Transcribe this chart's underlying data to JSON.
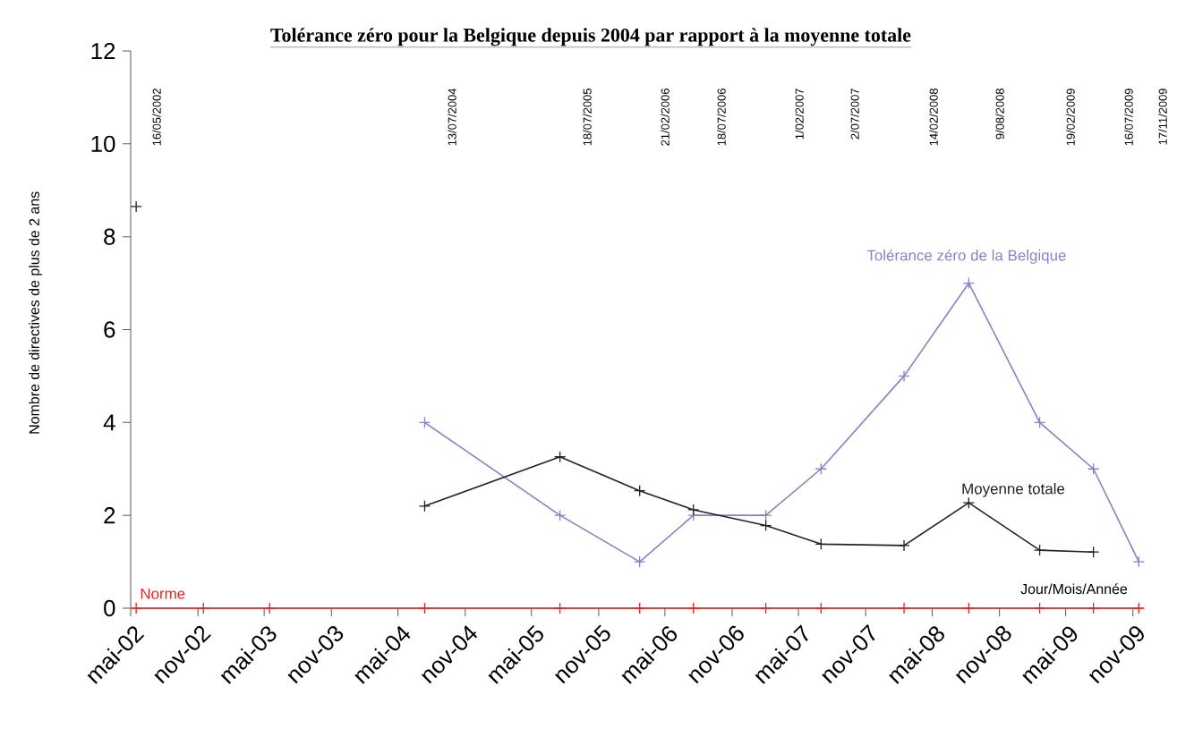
{
  "chart_data": {
    "type": "line",
    "title": "Tolérance zéro pour la Belgique depuis 2004 par rapport à la moyenne totale",
    "xlabel": "Jour/Mois/Année",
    "ylabel": "Nombre de directives de plus de 2 ans",
    "x": [
      "2002-05-16",
      "2002-11-16",
      "2003-05-16",
      "2004-07-13",
      "2005-07-18",
      "2006-02-21",
      "2006-07-18",
      "2007-02-01",
      "2007-07-02",
      "2008-02-14",
      "2008-08-09",
      "2009-02-19",
      "2009-07-16",
      "2009-11-17"
    ],
    "series": [
      {
        "name": "Tolérance zéro de la Belgique",
        "color": "#8484c4",
        "values": [
          null,
          null,
          null,
          4,
          2,
          1,
          2,
          2,
          3,
          5,
          7,
          4,
          3,
          1
        ]
      },
      {
        "name": "Moyenne totale",
        "color": "#222222",
        "values": [
          8.65,
          null,
          null,
          2.2,
          3.26,
          2.53,
          2.12,
          1.78,
          1.38,
          1.35,
          2.27,
          1.25,
          1.21,
          null
        ]
      },
      {
        "name": "Norme",
        "color": "#ee2222",
        "values": [
          0,
          0,
          0,
          0,
          0,
          0,
          0,
          0,
          0,
          0,
          0,
          0,
          0,
          0
        ]
      }
    ],
    "annotations": [
      "16/05/2002",
      "13/07/2004",
      "18/07/2005",
      "21/02/2006",
      "18/07/2006",
      "1/02/2007",
      "2/07/2007",
      "14/02/2008",
      "9/08/2008",
      "19/02/2009",
      "16/07/2009",
      "17/11/2009"
    ],
    "xlim": [
      "2002-05-01",
      "2009-12-01"
    ],
    "xticks": [
      {
        "value": "2002-05-01",
        "label": "mai-02"
      },
      {
        "value": "2002-11-01",
        "label": "nov-02"
      },
      {
        "value": "2003-05-01",
        "label": "mai-03"
      },
      {
        "value": "2003-11-01",
        "label": "nov-03"
      },
      {
        "value": "2004-05-01",
        "label": "mai-04"
      },
      {
        "value": "2004-11-01",
        "label": "nov-04"
      },
      {
        "value": "2005-05-01",
        "label": "mai-05"
      },
      {
        "value": "2005-11-01",
        "label": "nov-05"
      },
      {
        "value": "2006-05-01",
        "label": "mai-06"
      },
      {
        "value": "2006-11-01",
        "label": "nov-06"
      },
      {
        "value": "2007-05-01",
        "label": "mai-07"
      },
      {
        "value": "2007-11-01",
        "label": "nov-07"
      },
      {
        "value": "2008-05-01",
        "label": "mai-08"
      },
      {
        "value": "2008-11-01",
        "label": "nov-08"
      },
      {
        "value": "2009-05-01",
        "label": "mai-09"
      },
      {
        "value": "2009-11-01",
        "label": "nov-09"
      }
    ],
    "ylim": [
      0,
      12
    ],
    "yticks": [
      0,
      2,
      4,
      6,
      8,
      10,
      12
    ],
    "grid": false,
    "legend": false,
    "marker": "cross",
    "line_style": "solid"
  }
}
